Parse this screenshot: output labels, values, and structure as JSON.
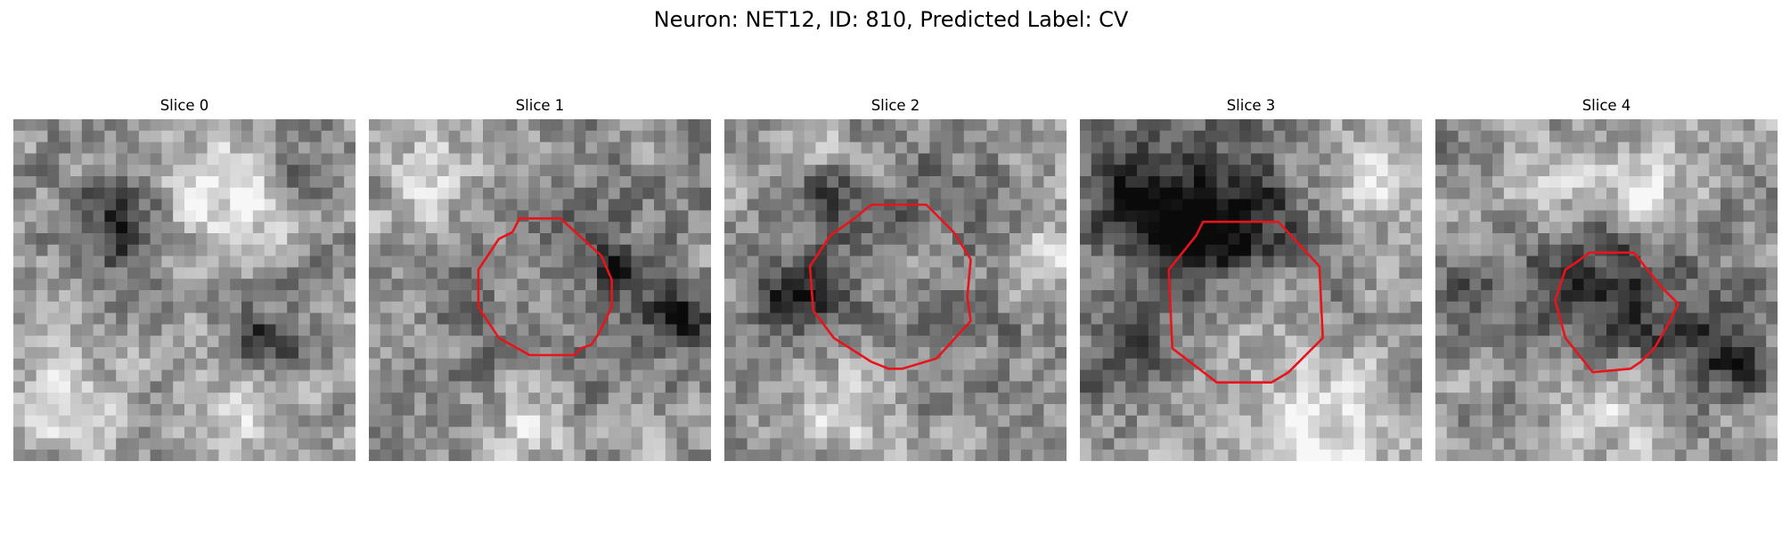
{
  "figure": {
    "title": "Neuron: NET12, ID: 810, Predicted Label: CV"
  },
  "colors": {
    "background": "#ffffff",
    "contour": "#e8141b"
  },
  "grid": {
    "size": 30,
    "colormap": "grayscale"
  },
  "panels": [
    {
      "title": "Slice 0",
      "seed": 11,
      "dark_blobs": [
        [
          0.3,
          0.32,
          0.1,
          1.0
        ],
        [
          0.72,
          0.64,
          0.08,
          1.0
        ],
        [
          0.84,
          0.15,
          0.05,
          0.7
        ]
      ],
      "light_blobs": [
        [
          0.6,
          0.22,
          0.12,
          1.0
        ],
        [
          0.15,
          0.85,
          0.1,
          0.9
        ],
        [
          0.7,
          0.85,
          0.1,
          0.7
        ]
      ],
      "contour": null
    },
    {
      "title": "Slice 1",
      "seed": 23,
      "dark_blobs": [
        [
          0.52,
          0.5,
          0.21,
          1.0
        ],
        [
          0.92,
          0.58,
          0.07,
          1.0
        ],
        [
          0.72,
          0.42,
          0.05,
          0.7
        ]
      ],
      "light_blobs": [
        [
          0.52,
          0.5,
          0.15,
          1.0
        ],
        [
          0.48,
          0.88,
          0.08,
          1.0
        ],
        [
          0.2,
          0.18,
          0.15,
          0.6
        ]
      ],
      "contour": [
        [
          0.44,
          0.29
        ],
        [
          0.56,
          0.29
        ],
        [
          0.68,
          0.4
        ],
        [
          0.71,
          0.47
        ],
        [
          0.71,
          0.55
        ],
        [
          0.67,
          0.63
        ],
        [
          0.65,
          0.66
        ],
        [
          0.62,
          0.67
        ],
        [
          0.6,
          0.69
        ],
        [
          0.47,
          0.69
        ],
        [
          0.38,
          0.64
        ],
        [
          0.32,
          0.55
        ],
        [
          0.32,
          0.44
        ],
        [
          0.38,
          0.35
        ],
        [
          0.42,
          0.33
        ]
      ]
    },
    {
      "title": "Slice 2",
      "seed": 37,
      "dark_blobs": [
        [
          0.5,
          0.5,
          0.25,
          1.0
        ],
        [
          0.2,
          0.52,
          0.07,
          1.0
        ],
        [
          0.3,
          0.24,
          0.07,
          0.8
        ]
      ],
      "light_blobs": [
        [
          0.5,
          0.5,
          0.17,
          1.0
        ],
        [
          0.35,
          0.84,
          0.12,
          1.0
        ],
        [
          0.92,
          0.44,
          0.1,
          0.8
        ],
        [
          0.22,
          0.12,
          0.12,
          0.6
        ]
      ],
      "contour": [
        [
          0.43,
          0.25
        ],
        [
          0.59,
          0.25
        ],
        [
          0.67,
          0.33
        ],
        [
          0.72,
          0.41
        ],
        [
          0.71,
          0.52
        ],
        [
          0.72,
          0.59
        ],
        [
          0.62,
          0.7
        ],
        [
          0.52,
          0.73
        ],
        [
          0.48,
          0.73
        ],
        [
          0.43,
          0.71
        ],
        [
          0.32,
          0.64
        ],
        [
          0.26,
          0.56
        ],
        [
          0.25,
          0.43
        ],
        [
          0.31,
          0.34
        ],
        [
          0.38,
          0.29
        ]
      ]
    },
    {
      "title": "Slice 3",
      "seed": 53,
      "dark_blobs": [
        [
          0.46,
          0.38,
          0.2,
          1.0
        ],
        [
          0.18,
          0.24,
          0.12,
          1.0
        ],
        [
          0.42,
          0.3,
          0.1,
          0.8
        ],
        [
          0.12,
          0.7,
          0.1,
          0.6
        ]
      ],
      "light_blobs": [
        [
          0.5,
          0.54,
          0.14,
          1.0
        ],
        [
          0.72,
          0.92,
          0.15,
          1.0
        ],
        [
          0.85,
          0.18,
          0.12,
          0.7
        ]
      ],
      "contour": [
        [
          0.36,
          0.3
        ],
        [
          0.58,
          0.3
        ],
        [
          0.7,
          0.43
        ],
        [
          0.71,
          0.64
        ],
        [
          0.61,
          0.74
        ],
        [
          0.56,
          0.77
        ],
        [
          0.4,
          0.77
        ],
        [
          0.27,
          0.67
        ],
        [
          0.26,
          0.44
        ],
        [
          0.34,
          0.34
        ]
      ]
    },
    {
      "title": "Slice 4",
      "seed": 71,
      "dark_blobs": [
        [
          0.54,
          0.52,
          0.17,
          1.0
        ],
        [
          0.85,
          0.68,
          0.09,
          0.9
        ],
        [
          0.15,
          0.5,
          0.1,
          0.6
        ]
      ],
      "light_blobs": [
        [
          0.62,
          0.22,
          0.1,
          1.0
        ],
        [
          0.5,
          0.85,
          0.12,
          0.8
        ],
        [
          0.3,
          0.2,
          0.1,
          0.6
        ]
      ],
      "contour": [
        [
          0.45,
          0.39
        ],
        [
          0.58,
          0.39
        ],
        [
          0.66,
          0.49
        ],
        [
          0.71,
          0.54
        ],
        [
          0.68,
          0.6
        ],
        [
          0.64,
          0.67
        ],
        [
          0.6,
          0.71
        ],
        [
          0.57,
          0.73
        ],
        [
          0.46,
          0.74
        ],
        [
          0.38,
          0.64
        ],
        [
          0.35,
          0.53
        ],
        [
          0.38,
          0.44
        ],
        [
          0.41,
          0.42
        ]
      ]
    }
  ]
}
